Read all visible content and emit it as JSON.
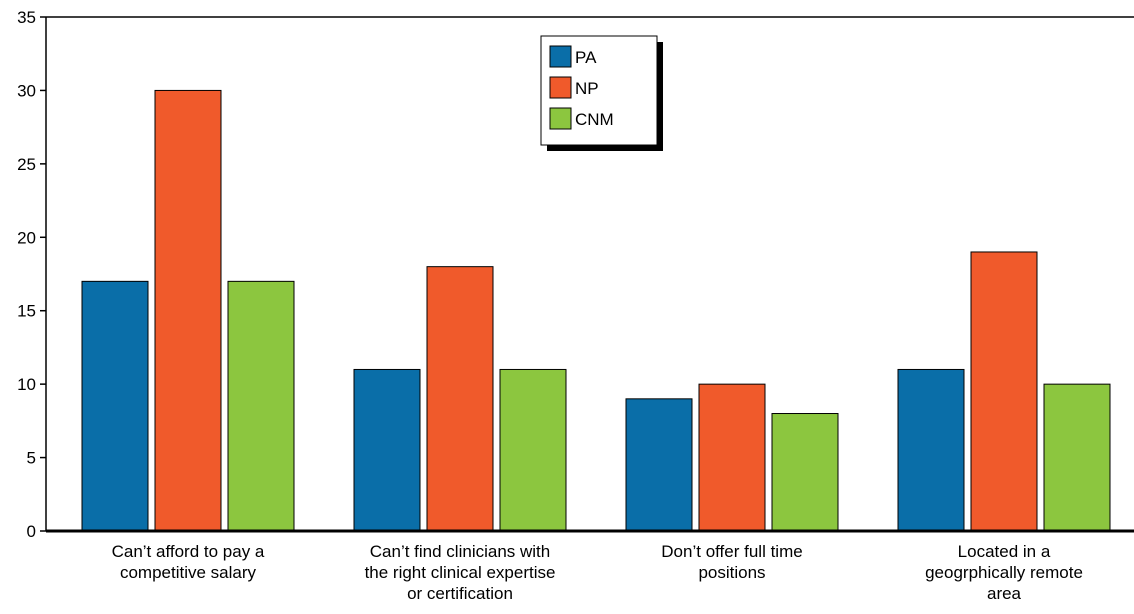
{
  "chart_data": {
    "type": "bar",
    "categories": [
      [
        "Can’t afford to pay a",
        "competitive salary"
      ],
      [
        "Can’t find clinicians with",
        "the right clinical expertise",
        "or certification"
      ],
      [
        "Don’t offer full time",
        "positions"
      ],
      [
        "Located in a",
        "geogrphically remote",
        "area"
      ]
    ],
    "series": [
      {
        "name": "PA",
        "color": "#0a6ea8",
        "values": [
          17,
          11,
          9,
          11
        ]
      },
      {
        "name": "NP",
        "color": "#f05a2b",
        "values": [
          30,
          18,
          10,
          19
        ]
      },
      {
        "name": "CNM",
        "color": "#8cc63f",
        "values": [
          17,
          11,
          8,
          10
        ]
      }
    ],
    "ylim": [
      0,
      35
    ],
    "yticks": [
      0,
      5,
      10,
      15,
      20,
      25,
      30,
      35
    ],
    "title": "",
    "xlabel": "",
    "ylabel": "",
    "legend_position": "top-center",
    "grid": false
  }
}
